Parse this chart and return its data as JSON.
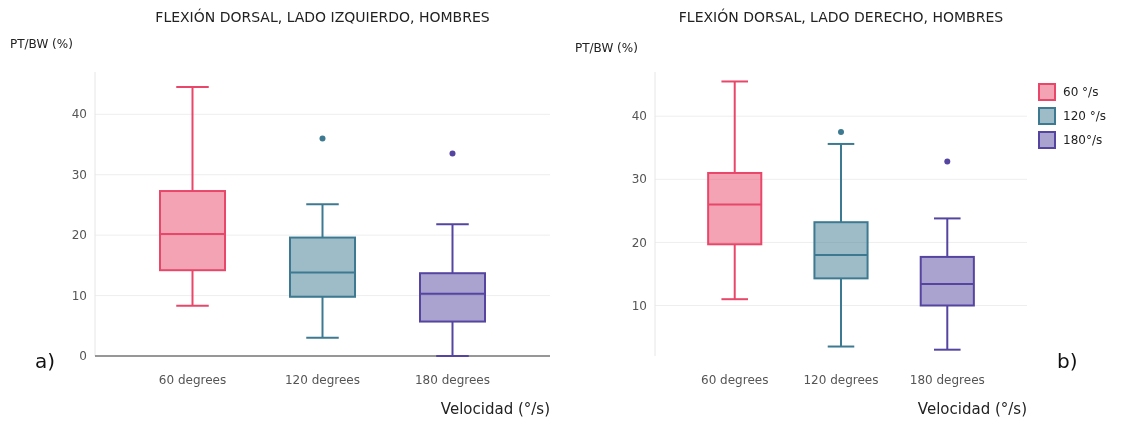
{
  "chart_data": [
    {
      "type": "box",
      "title": "FLEXIÓN DORSAL, LADO IZQUIERDO, HOMBRES",
      "ylabel": "PT/BW (%)",
      "xlabel": "Velocidad (°/s)",
      "categories": [
        "60 degrees",
        "120 degrees",
        "180 degrees"
      ],
      "colors": [
        "#e8476a",
        "#3d7a91",
        "#5545a0"
      ],
      "boxes": [
        {
          "low": 8.3,
          "q1": 14.2,
          "median": 20.2,
          "q3": 27.3,
          "high": 44.5
        },
        {
          "low": 3,
          "q1": 9.8,
          "median": 13.8,
          "q3": 19.6,
          "high": 25.1,
          "outliers": [
            36
          ]
        },
        {
          "low": 0,
          "q1": 5.7,
          "median": 10.3,
          "q3": 13.7,
          "high": 21.8,
          "outliers": [
            33.5
          ]
        }
      ],
      "ylim": [
        0,
        47
      ],
      "yticks": [
        0,
        10,
        20,
        30,
        40
      ],
      "grid": "y",
      "legend": false,
      "annotations": [
        "a)"
      ]
    },
    {
      "type": "box",
      "title": "FLEXIÓN DORSAL, LADO DERECHO, HOMBRES",
      "ylabel": "PT/BW (%)",
      "xlabel": "Velocidad (°/s)",
      "categories": [
        "60 degrees",
        "120 degrees",
        "180 degrees"
      ],
      "series": [
        {
          "name": "60 °/s",
          "color": "#e8476a",
          "boxes": [
            {
              "low": 11,
              "q1": 19.7,
              "median": 26,
              "q3": 31,
              "high": 45.5
            },
            null,
            null
          ]
        },
        {
          "name": "120 °/s",
          "color": "#3d7a91",
          "boxes": [
            null,
            {
              "low": 3.5,
              "q1": 14.3,
              "median": 18,
              "q3": 23.2,
              "high": 35.6,
              "outliers": [
                37.5
              ]
            },
            null
          ]
        },
        {
          "name": "180°/s",
          "color": "#5545a0",
          "boxes": [
            null,
            null,
            {
              "low": 3,
              "q1": 10,
              "median": 13.4,
              "q3": 17.7,
              "high": 23.8,
              "outliers": [
                32.8
              ]
            }
          ]
        }
      ],
      "ylim": [
        2,
        47
      ],
      "yticks": [
        10,
        20,
        30,
        40
      ],
      "grid": "y",
      "legend": "top right",
      "annotations": [
        "b)"
      ]
    }
  ]
}
